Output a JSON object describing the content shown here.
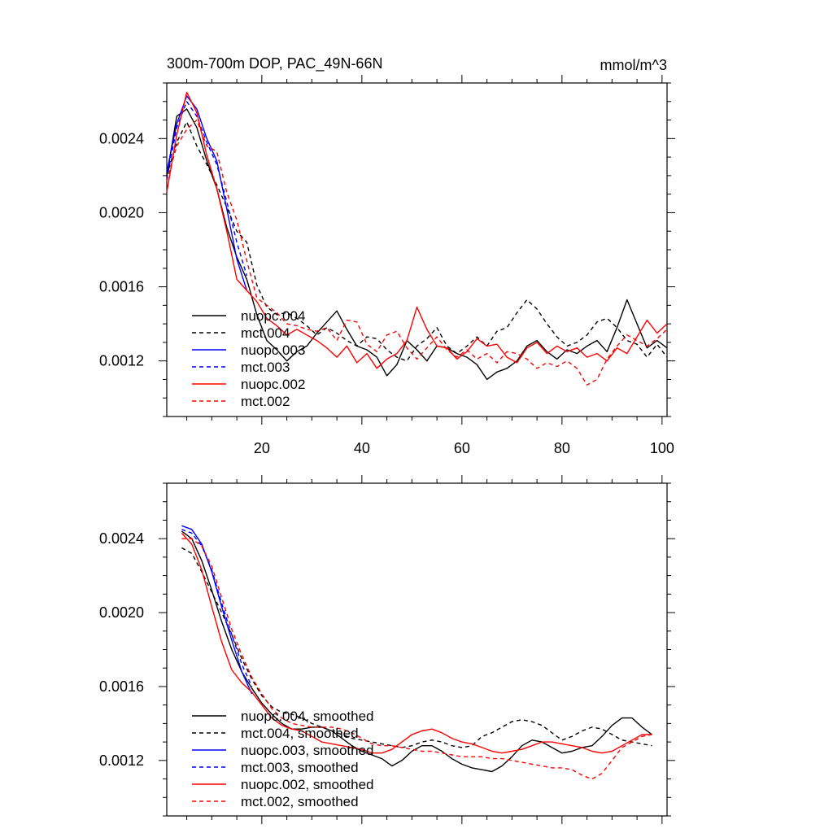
{
  "figure": {
    "title": "300m-700m DOP, PAC_49N-66N",
    "units": "mmol/m^3"
  },
  "chart_data": [
    {
      "type": "line",
      "panel": "top",
      "title": "300m-700m DOP, PAC_49N-66N",
      "units": "mmol/m^3",
      "xlabel": "",
      "ylabel": "",
      "xlim": [
        1,
        101
      ],
      "ylim": [
        0.0009,
        0.0027
      ],
      "xticks": [
        20,
        40,
        60,
        80,
        100
      ],
      "xtick_labels": [
        "20",
        "40",
        "60",
        "80",
        "100"
      ],
      "yticks": [
        0.0012,
        0.0016,
        0.002,
        0.0024
      ],
      "ytick_labels": [
        "0.0012",
        "0.0016",
        "0.0020",
        "0.0024"
      ],
      "legend_position": "lower-left",
      "series": [
        {
          "name": "nuopc.004",
          "color": "#000000",
          "dash": "solid",
          "x": [
            1,
            3,
            5,
            7,
            9,
            11,
            13,
            15,
            17,
            19,
            21,
            23,
            25,
            27,
            29,
            31,
            33,
            35,
            37,
            39,
            41,
            43,
            45,
            47,
            49,
            51,
            53,
            55,
            57,
            59,
            61,
            63,
            65,
            67,
            69,
            71,
            73,
            75,
            77,
            79,
            81,
            83,
            85,
            87,
            89,
            91,
            93,
            95,
            97,
            99,
            101
          ],
          "y": [
            0.0022,
            0.00252,
            0.00256,
            0.00246,
            0.00228,
            0.00213,
            0.00192,
            0.00176,
            0.00164,
            0.00145,
            0.00131,
            0.00126,
            0.0012,
            0.00125,
            0.00128,
            0.00135,
            0.00141,
            0.00147,
            0.00137,
            0.00128,
            0.00126,
            0.00122,
            0.00112,
            0.00118,
            0.00131,
            0.00126,
            0.0012,
            0.00128,
            0.00127,
            0.00124,
            0.00122,
            0.00118,
            0.0011,
            0.00114,
            0.00116,
            0.0012,
            0.00128,
            0.00131,
            0.00125,
            0.00121,
            0.00126,
            0.00124,
            0.00128,
            0.00131,
            0.00125,
            0.00138,
            0.00153,
            0.0014,
            0.00127,
            0.00131,
            0.00127
          ]
        },
        {
          "name": "mct.004",
          "color": "#000000",
          "dash": "dashed",
          "x": [
            1,
            3,
            5,
            7,
            9,
            11,
            13,
            15,
            17,
            19,
            21,
            23,
            25,
            27,
            29,
            31,
            33,
            35,
            37,
            39,
            41,
            43,
            45,
            47,
            49,
            51,
            53,
            55,
            57,
            59,
            61,
            63,
            65,
            67,
            69,
            71,
            73,
            75,
            77,
            79,
            81,
            83,
            85,
            87,
            89,
            91,
            93,
            95,
            97,
            99,
            101
          ],
          "y": [
            0.0022,
            0.00238,
            0.00249,
            0.00236,
            0.00226,
            0.00215,
            0.00203,
            0.0019,
            0.00184,
            0.00161,
            0.00149,
            0.00145,
            0.00146,
            0.00143,
            0.00139,
            0.00134,
            0.00138,
            0.00135,
            0.00131,
            0.00128,
            0.00133,
            0.00132,
            0.00126,
            0.00122,
            0.0012,
            0.00128,
            0.00132,
            0.00138,
            0.00128,
            0.00124,
            0.00128,
            0.00133,
            0.00128,
            0.00136,
            0.00138,
            0.00146,
            0.00153,
            0.00148,
            0.0014,
            0.00133,
            0.00128,
            0.0013,
            0.00134,
            0.00141,
            0.00143,
            0.00138,
            0.00131,
            0.00129,
            0.00122,
            0.00129,
            0.00122
          ]
        },
        {
          "name": "nuopc.003",
          "color": "#0000ff",
          "dash": "solid",
          "x": [
            1,
            3,
            5,
            7,
            9,
            11,
            13,
            15,
            17
          ],
          "y": [
            0.00222,
            0.00248,
            0.00263,
            0.00256,
            0.0024,
            0.00228,
            0.00202,
            0.00175,
            0.00158
          ]
        },
        {
          "name": "mct.003",
          "color": "#0000ff",
          "dash": "dashed",
          "x": [
            1,
            3,
            5,
            7,
            9,
            11,
            13,
            15,
            17
          ],
          "y": [
            0.00218,
            0.00246,
            0.0026,
            0.00252,
            0.00238,
            0.00226,
            0.00206,
            0.00184,
            0.00166
          ]
        },
        {
          "name": "nuopc.002",
          "color": "#ff0000",
          "dash": "solid",
          "x": [
            1,
            3,
            5,
            7,
            9,
            11,
            13,
            15,
            17,
            19,
            21,
            23,
            25,
            27,
            29,
            31,
            33,
            35,
            37,
            39,
            41,
            43,
            45,
            47,
            49,
            51,
            53,
            55,
            57,
            59,
            61,
            63,
            65,
            67,
            69,
            71,
            73,
            75,
            77,
            79,
            81,
            83,
            85,
            87,
            89,
            91,
            93,
            95,
            97,
            99,
            101
          ],
          "y": [
            0.00211,
            0.00242,
            0.00265,
            0.00254,
            0.00231,
            0.00213,
            0.0019,
            0.00164,
            0.00158,
            0.00152,
            0.00143,
            0.00139,
            0.00134,
            0.00137,
            0.00134,
            0.00131,
            0.00127,
            0.00122,
            0.00128,
            0.00119,
            0.00124,
            0.00116,
            0.00121,
            0.00124,
            0.00131,
            0.00149,
            0.00137,
            0.00128,
            0.00127,
            0.00121,
            0.00125,
            0.00132,
            0.00128,
            0.00129,
            0.00122,
            0.00119,
            0.00127,
            0.0013,
            0.00124,
            0.00128,
            0.00125,
            0.00127,
            0.00122,
            0.00124,
            0.0012,
            0.00127,
            0.00124,
            0.00133,
            0.00142,
            0.00135,
            0.0014
          ]
        },
        {
          "name": "mct.002",
          "color": "#ff0000",
          "dash": "dashed",
          "x": [
            1,
            3,
            5,
            7,
            9,
            11,
            13,
            15,
            17,
            19,
            21,
            23,
            25,
            27,
            29,
            31,
            33,
            35,
            37,
            39,
            41,
            43,
            45,
            47,
            49,
            51,
            53,
            55,
            57,
            59,
            61,
            63,
            65,
            67,
            69,
            71,
            73,
            75,
            77,
            79,
            81,
            83,
            85,
            87,
            89,
            91,
            93,
            95,
            97,
            99,
            101
          ],
          "y": [
            0.00217,
            0.00236,
            0.00245,
            0.0025,
            0.00236,
            0.00233,
            0.00211,
            0.00196,
            0.00174,
            0.00154,
            0.0015,
            0.00146,
            0.0014,
            0.00139,
            0.00137,
            0.00136,
            0.00138,
            0.00131,
            0.00142,
            0.00141,
            0.00129,
            0.00125,
            0.00134,
            0.00136,
            0.00127,
            0.00121,
            0.00127,
            0.00133,
            0.00126,
            0.00122,
            0.00126,
            0.00121,
            0.00124,
            0.00119,
            0.00125,
            0.00124,
            0.00121,
            0.00116,
            0.00119,
            0.00117,
            0.0012,
            0.00116,
            0.00107,
            0.0011,
            0.00121,
            0.00128,
            0.00134,
            0.00131,
            0.00128,
            0.00132,
            0.00137
          ]
        }
      ]
    },
    {
      "type": "line",
      "panel": "bottom",
      "title": "",
      "xlabel": "",
      "ylabel": "",
      "xlim": [
        1,
        101
      ],
      "ylim": [
        0.0009,
        0.0027
      ],
      "xticks": [
        20,
        40,
        60,
        80,
        100
      ],
      "xtick_labels": [],
      "yticks": [
        0.0012,
        0.0016,
        0.002,
        0.0024
      ],
      "ytick_labels": [
        "0.0012",
        "0.0016",
        "0.0020",
        "0.0024"
      ],
      "legend_position": "lower-left",
      "series": [
        {
          "name": "nuopc.004, smoothed",
          "color": "#000000",
          "dash": "solid",
          "x": [
            4,
            6,
            8,
            10,
            12,
            14,
            16,
            18,
            20,
            22,
            24,
            26,
            28,
            30,
            32,
            34,
            36,
            38,
            40,
            42,
            44,
            46,
            48,
            50,
            52,
            54,
            56,
            58,
            60,
            62,
            64,
            66,
            68,
            70,
            72,
            74,
            76,
            78,
            80,
            82,
            84,
            86,
            88,
            90,
            92,
            94,
            96,
            98
          ],
          "y": [
            0.00244,
            0.0024,
            0.00228,
            0.00212,
            0.00195,
            0.0018,
            0.00168,
            0.00159,
            0.00151,
            0.00145,
            0.0014,
            0.00137,
            0.00137,
            0.00138,
            0.00138,
            0.00136,
            0.00132,
            0.00128,
            0.00125,
            0.00123,
            0.00121,
            0.00117,
            0.0012,
            0.00125,
            0.00128,
            0.00128,
            0.00125,
            0.00121,
            0.00118,
            0.00116,
            0.00115,
            0.00114,
            0.00117,
            0.00122,
            0.00128,
            0.00131,
            0.0013,
            0.00127,
            0.00124,
            0.00125,
            0.00127,
            0.00128,
            0.00133,
            0.00139,
            0.00143,
            0.00143,
            0.00138,
            0.00134
          ]
        },
        {
          "name": "mct.004, smoothed",
          "color": "#000000",
          "dash": "dashed",
          "x": [
            4,
            6,
            8,
            10,
            12,
            14,
            16,
            18,
            20,
            22,
            24,
            26,
            28,
            30,
            32,
            34,
            36,
            38,
            40,
            42,
            44,
            46,
            48,
            50,
            52,
            54,
            56,
            58,
            60,
            62,
            64,
            66,
            68,
            70,
            72,
            74,
            76,
            78,
            80,
            82,
            84,
            86,
            88,
            90,
            92,
            94,
            96,
            98
          ],
          "y": [
            0.00235,
            0.00232,
            0.00222,
            0.00211,
            0.002,
            0.00188,
            0.00175,
            0.00164,
            0.00155,
            0.00149,
            0.00146,
            0.00145,
            0.00143,
            0.0014,
            0.00138,
            0.00136,
            0.00134,
            0.00132,
            0.00131,
            0.0013,
            0.00129,
            0.00128,
            0.00127,
            0.00128,
            0.0013,
            0.00131,
            0.0013,
            0.00128,
            0.00127,
            0.00128,
            0.00133,
            0.00135,
            0.00138,
            0.00141,
            0.00142,
            0.00141,
            0.00139,
            0.00135,
            0.00131,
            0.00133,
            0.00136,
            0.00138,
            0.00137,
            0.00134,
            0.00131,
            0.0013,
            0.00129,
            0.00128
          ]
        },
        {
          "name": "nuopc.003, smoothed",
          "color": "#0000ff",
          "dash": "solid",
          "x": [
            4,
            6,
            8,
            10,
            12,
            14,
            16,
            18
          ],
          "y": [
            0.00247,
            0.00245,
            0.00237,
            0.00222,
            0.00203,
            0.00185,
            0.00168,
            0.00156
          ]
        },
        {
          "name": "mct.003, smoothed",
          "color": "#0000ff",
          "dash": "dashed",
          "x": [
            4,
            6,
            8,
            10,
            12,
            14,
            16,
            18
          ],
          "y": [
            0.00245,
            0.00243,
            0.00236,
            0.00223,
            0.00205,
            0.00188,
            0.00172,
            0.0016
          ]
        },
        {
          "name": "nuopc.002, smoothed",
          "color": "#ff0000",
          "dash": "solid",
          "x": [
            4,
            6,
            8,
            10,
            12,
            14,
            16,
            18,
            20,
            22,
            24,
            26,
            28,
            30,
            32,
            34,
            36,
            38,
            40,
            42,
            44,
            46,
            48,
            50,
            52,
            54,
            56,
            58,
            60,
            62,
            64,
            66,
            68,
            70,
            72,
            74,
            76,
            78,
            80,
            82,
            84,
            86,
            88,
            90,
            92,
            94,
            96,
            98
          ],
          "y": [
            0.00243,
            0.00237,
            0.00223,
            0.00203,
            0.00184,
            0.00169,
            0.00162,
            0.00157,
            0.0015,
            0.00143,
            0.00139,
            0.00137,
            0.00136,
            0.00133,
            0.0013,
            0.00129,
            0.00128,
            0.00127,
            0.00126,
            0.00124,
            0.00124,
            0.00126,
            0.0013,
            0.00134,
            0.00136,
            0.00137,
            0.00135,
            0.00132,
            0.0013,
            0.00129,
            0.00127,
            0.00125,
            0.00124,
            0.00125,
            0.00126,
            0.00128,
            0.0013,
            0.0013,
            0.00129,
            0.00128,
            0.00127,
            0.00125,
            0.00124,
            0.00125,
            0.00128,
            0.00131,
            0.00134,
            0.00134
          ]
        },
        {
          "name": "mct.002, smoothed",
          "color": "#ff0000",
          "dash": "dashed",
          "x": [
            4,
            6,
            8,
            10,
            12,
            14,
            16,
            18,
            20,
            22,
            24,
            26,
            28,
            30,
            32,
            34,
            36,
            38,
            40,
            42,
            44,
            46,
            48,
            50,
            52,
            54,
            56,
            58,
            60,
            62,
            64,
            66,
            68,
            70,
            72,
            74,
            76,
            78,
            80,
            82,
            84,
            86,
            88,
            90,
            92,
            94,
            96,
            98
          ],
          "y": [
            0.0024,
            0.0024,
            0.00236,
            0.00225,
            0.00208,
            0.00191,
            0.00177,
            0.00165,
            0.00156,
            0.00148,
            0.00143,
            0.0014,
            0.00139,
            0.00138,
            0.00138,
            0.00138,
            0.00137,
            0.00135,
            0.00132,
            0.00129,
            0.00128,
            0.00128,
            0.00127,
            0.00126,
            0.00125,
            0.00125,
            0.00124,
            0.00123,
            0.00122,
            0.00122,
            0.00122,
            0.00121,
            0.00121,
            0.0012,
            0.00119,
            0.00118,
            0.00117,
            0.00116,
            0.00116,
            0.00115,
            0.00112,
            0.0011,
            0.00113,
            0.0012,
            0.00127,
            0.0013,
            0.00133,
            0.00134
          ]
        }
      ]
    }
  ]
}
